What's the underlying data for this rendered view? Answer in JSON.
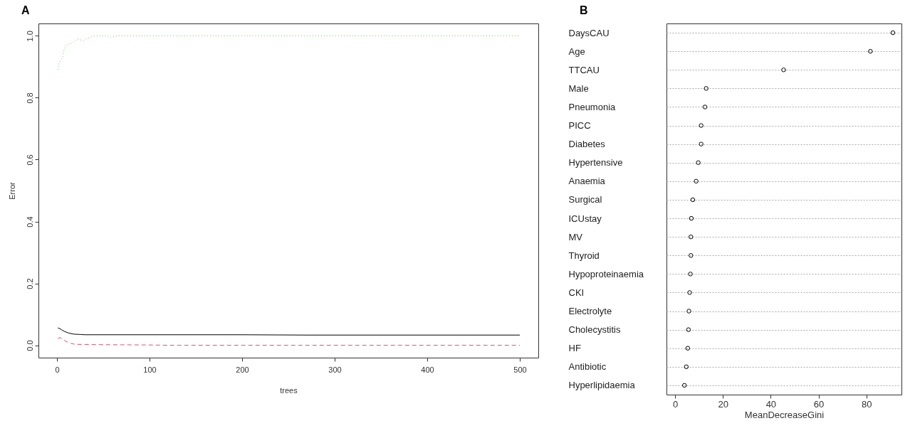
{
  "chart_data": [
    {
      "type": "line",
      "title": "A",
      "xlabel": "trees",
      "ylabel": "Error",
      "xlim": [
        -20,
        520
      ],
      "ylim": [
        -0.04,
        1.04
      ],
      "xticks": [
        0,
        100,
        200,
        300,
        400,
        500
      ],
      "yticks": [
        {
          "value": 0,
          "label": "0.0"
        },
        0.2,
        0.4,
        0.6,
        0.8,
        {
          "value": 1,
          "label": "1.0"
        }
      ],
      "series": [
        {
          "color": "#000000",
          "line_style": "solid",
          "x": [
            1,
            3,
            5,
            8,
            12,
            18,
            25,
            30,
            100,
            200,
            270,
            400,
            500
          ],
          "values": [
            0.056,
            0.054,
            0.05,
            0.045,
            0.04,
            0.036,
            0.035,
            0.034,
            0.034,
            0.034,
            0.033,
            0.033,
            0.033
          ]
        },
        {
          "color": "#df536b",
          "line_style": "dashed",
          "x": [
            1,
            3,
            6,
            10,
            15,
            20,
            50,
            100,
            120,
            500
          ],
          "values": [
            0.022,
            0.025,
            0.02,
            0.012,
            0.006,
            0.003,
            0.002,
            0.001,
            0,
            0
          ]
        },
        {
          "color": "#61d04f",
          "line_style": "dotted",
          "x": [
            1,
            2,
            4,
            6,
            8,
            10,
            14,
            18,
            22,
            28,
            32,
            36,
            40,
            55,
            58,
            65,
            500
          ],
          "values": [
            0.89,
            0.91,
            0.92,
            0.93,
            0.96,
            0.97,
            0.975,
            0.98,
            0.99,
            0.985,
            0.99,
            0.995,
            1.0,
            1.0,
            0.995,
            1.0,
            1.0
          ]
        }
      ]
    },
    {
      "type": "scatter",
      "title": "B",
      "orientation": "horizontal",
      "xlabel": "MeanDecreaseGini",
      "xlim": [
        -3.6,
        94.7
      ],
      "xticks": [
        0,
        20,
        40,
        60,
        80
      ],
      "grid": "y",
      "marker": "circle",
      "color": "#000000",
      "categories": [
        "DaysCAU",
        "Age",
        "TTCAU",
        "Male",
        "Pneumonia",
        "PICC",
        "Diabetes",
        "Hypertensive",
        "Anaemia",
        "Surgical",
        "ICUstay",
        "MV",
        "Thyroid",
        "Hypoproteinaemia",
        "CKI",
        "Electrolyte",
        "Cholecystitis",
        "HF",
        "Antibiotic",
        "Hyperlipidaemia"
      ],
      "values": [
        91.1,
        81.7,
        45.4,
        13.0,
        12.5,
        10.9,
        10.9,
        9.7,
        8.8,
        7.4,
        6.8,
        6.6,
        6.6,
        6.4,
        6.1,
        5.8,
        5.6,
        5.3,
        4.7,
        3.9
      ]
    }
  ]
}
